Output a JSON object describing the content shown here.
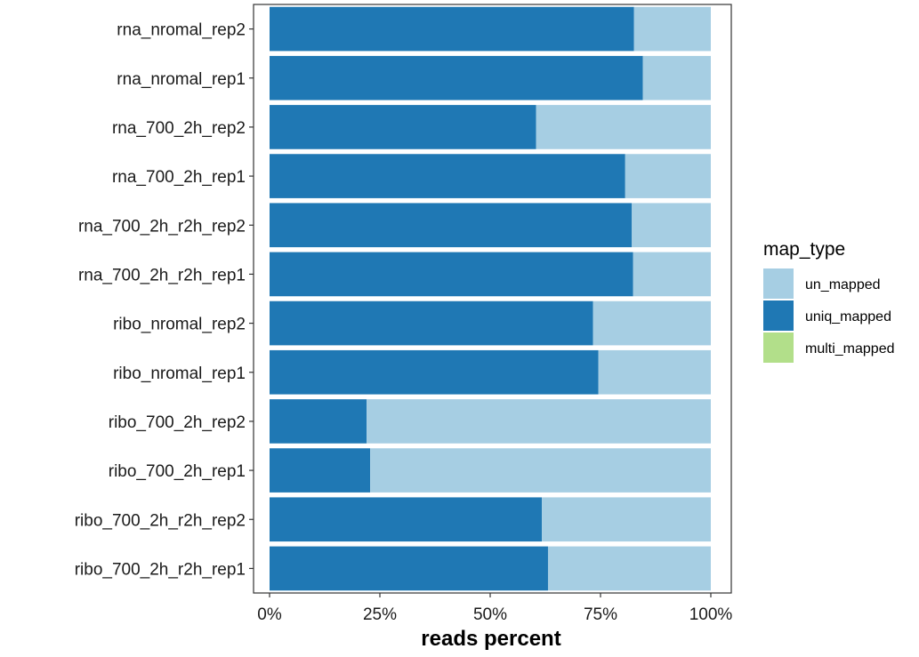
{
  "chart_data": {
    "type": "bar",
    "orientation": "horizontal",
    "stacked": true,
    "categories": [
      "rna_nromal_rep2",
      "rna_nromal_rep1",
      "rna_700_2h_rep2",
      "rna_700_2h_rep1",
      "rna_700_2h_r2h_rep2",
      "rna_700_2h_r2h_rep1",
      "ribo_nromal_rep2",
      "ribo_nromal_rep1",
      "ribo_700_2h_rep2",
      "ribo_700_2h_rep1",
      "ribo_700_2h_r2h_rep2",
      "ribo_700_2h_r2h_rep1"
    ],
    "series": [
      {
        "name": "uniq_mapped",
        "color": "#1f78b4",
        "values": [
          0.826,
          0.846,
          0.604,
          0.806,
          0.821,
          0.824,
          0.733,
          0.745,
          0.22,
          0.228,
          0.617,
          0.631
        ]
      },
      {
        "name": "multi_mapped",
        "color": "#b2df8a",
        "values": [
          0,
          0,
          0,
          0,
          0,
          0,
          0,
          0,
          0,
          0,
          0,
          0
        ]
      },
      {
        "name": "un_mapped",
        "color": "#a6cee3",
        "values": [
          0.174,
          0.154,
          0.396,
          0.194,
          0.179,
          0.176,
          0.267,
          0.255,
          0.78,
          0.772,
          0.383,
          0.369
        ]
      }
    ],
    "xlim": [
      0,
      1
    ],
    "xticks": [
      0,
      0.25,
      0.5,
      0.75,
      1
    ],
    "xtick_labels": [
      "0%",
      "25%",
      "50%",
      "75%",
      "100%"
    ],
    "xlabel": "reads percent",
    "ylabel": "",
    "legend": {
      "title": "map_type",
      "position": "right",
      "entries": [
        {
          "label": "un_mapped",
          "color": "#a6cee3"
        },
        {
          "label": "uniq_mapped",
          "color": "#1f78b4"
        },
        {
          "label": "multi_mapped",
          "color": "#b2df8a"
        }
      ]
    },
    "grid": false
  }
}
